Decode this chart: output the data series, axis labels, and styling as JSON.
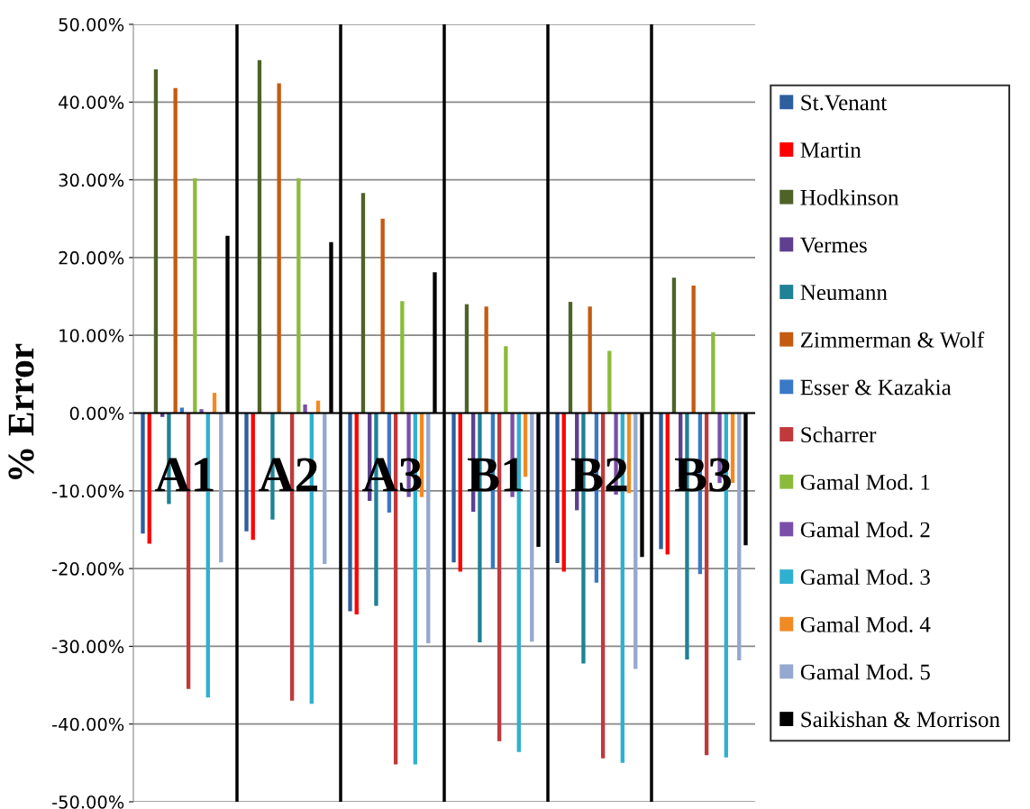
{
  "chart_data": {
    "type": "bar",
    "ylabel": "% Error",
    "categories": [
      "A1",
      "A2",
      "A3",
      "B1",
      "B2",
      "B3"
    ],
    "series": [
      {
        "name": "St.Venant",
        "color": "#2c5f9e",
        "values": [
          -15.5,
          -15.2,
          -25.5,
          -19.2,
          -19.3,
          -17.5
        ]
      },
      {
        "name": "Martin",
        "color": "#ff0000",
        "values": [
          -16.8,
          -16.3,
          -25.9,
          -20.4,
          -20.4,
          -18.2
        ]
      },
      {
        "name": "Hodkinson",
        "color": "#4f6228",
        "values": [
          44.2,
          45.4,
          28.3,
          14.0,
          14.3,
          17.4
        ]
      },
      {
        "name": "Vermes",
        "color": "#5f3f8f",
        "values": [
          -0.5,
          null,
          -11.3,
          -12.7,
          -12.5,
          -9.5
        ]
      },
      {
        "name": "Neumann",
        "color": "#1f8296",
        "values": [
          -11.7,
          -13.7,
          -24.8,
          -29.5,
          -32.2,
          -31.7
        ]
      },
      {
        "name": "Zimmerman & Wolf",
        "color": "#c55a11",
        "values": [
          41.8,
          42.4,
          25.0,
          13.7,
          13.7,
          16.4
        ]
      },
      {
        "name": "Esser & Kazakia",
        "color": "#3a78c8",
        "values": [
          0.7,
          null,
          -12.8,
          -20.0,
          -21.8,
          -20.7
        ]
      },
      {
        "name": "Scharrer",
        "color": "#c0393b",
        "values": [
          -35.5,
          -37.0,
          -45.2,
          -42.2,
          -44.4,
          -44.0
        ]
      },
      {
        "name": "Gamal Mod. 1",
        "color": "#8cbb3c",
        "values": [
          30.2,
          30.2,
          14.4,
          8.6,
          8.0,
          10.4
        ]
      },
      {
        "name": "Gamal Mod. 2",
        "color": "#7a4fa8",
        "values": [
          0.5,
          1.1,
          -10.8,
          -10.8,
          -10.5,
          -9.0
        ]
      },
      {
        "name": "Gamal Mod. 3",
        "color": "#2fb0d0",
        "values": [
          -36.6,
          -37.4,
          -45.2,
          -43.6,
          -45.0,
          -44.3
        ]
      },
      {
        "name": "Gamal Mod. 4",
        "color": "#f28a24",
        "values": [
          2.6,
          1.6,
          -10.8,
          -8.2,
          -10.3,
          -9.0
        ]
      },
      {
        "name": "Gamal Mod. 5",
        "color": "#95a8cf",
        "values": [
          -19.2,
          -19.4,
          -29.6,
          -29.4,
          -32.9,
          -31.8
        ]
      },
      {
        "name": "Saikishan & Morrison",
        "color": "#000000",
        "values": [
          22.8,
          22.0,
          18.1,
          -17.2,
          -18.5,
          -17.0
        ]
      }
    ],
    "ylim": [
      -50,
      50
    ],
    "yticks": [
      {
        "value": -50,
        "label": "-50.00%"
      },
      {
        "value": -40,
        "label": "-40.00%"
      },
      {
        "value": -30,
        "label": "-30.00%"
      },
      {
        "value": -20,
        "label": "-20.00%"
      },
      {
        "value": -10,
        "label": "-10.00%"
      },
      {
        "value": 0,
        "label": "0.00%"
      },
      {
        "value": 10,
        "label": "10.00%"
      },
      {
        "value": 20,
        "label": "20.00%"
      },
      {
        "value": 30,
        "label": "30.00%"
      },
      {
        "value": 40,
        "label": "40.00%"
      },
      {
        "value": 50,
        "label": "50.00%"
      }
    ],
    "grid": true,
    "legend": "right"
  }
}
